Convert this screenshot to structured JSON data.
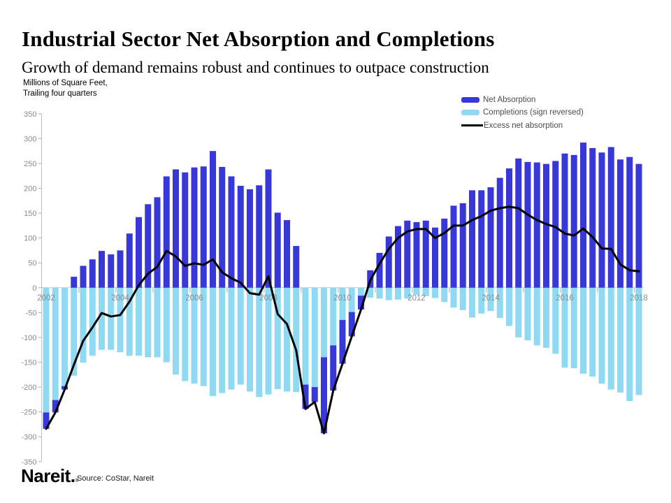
{
  "header": {
    "title": "Industrial Sector Net Absorption and Completions",
    "subtitle": "Growth of demand remains robust and continues to outpace construction"
  },
  "axis_note": {
    "line1": "Millions of Square Feet,",
    "line2": "Trailing four quarters"
  },
  "legend": {
    "items": [
      {
        "label": "Net Absorption",
        "swatch": "bar",
        "color": "#3838D8"
      },
      {
        "label": "Completions (sign reversed)",
        "swatch": "bar",
        "color": "#8FD9F2"
      },
      {
        "label": "Excess net absorption",
        "swatch": "line",
        "color": "#000000"
      }
    ]
  },
  "footer": {
    "logo_text": "Nareit.",
    "registered_mark": "®",
    "source": "Source: CoStar, Nareit"
  },
  "colors": {
    "net_absorption": "#3838D8",
    "completions": "#8FD9F2",
    "excess_line": "#000000",
    "axis_text": "#8C8C8C",
    "axis_line": "#BFBFBF",
    "tick_line": "#ADADAD",
    "zero_line": "#C9C9C9"
  },
  "chart_data": {
    "type": "bar",
    "title": "Industrial Sector Net Absorption and Completions",
    "subtitle": "Growth of demand remains robust and continues to outpace construction",
    "ylabel": "Millions of Square Feet, Trailing four quarters",
    "ylim": [
      -350,
      350
    ],
    "ytick_step": 50,
    "grid": "zero-line-only",
    "legend_position": "top-right",
    "bar_mode": "overlay; negative net absorption stacked below completions",
    "x_tick_labels": [
      "2002",
      "2004",
      "2006",
      "2008",
      "2010",
      "2012",
      "2014",
      "2016",
      "2018"
    ],
    "quarters": [
      "2002Q1",
      "2002Q2",
      "2002Q3",
      "2002Q4",
      "2003Q1",
      "2003Q2",
      "2003Q3",
      "2003Q4",
      "2004Q1",
      "2004Q2",
      "2004Q3",
      "2004Q4",
      "2005Q1",
      "2005Q2",
      "2005Q3",
      "2005Q4",
      "2006Q1",
      "2006Q2",
      "2006Q3",
      "2006Q4",
      "2007Q1",
      "2007Q2",
      "2007Q3",
      "2007Q4",
      "2008Q1",
      "2008Q2",
      "2008Q3",
      "2008Q4",
      "2009Q1",
      "2009Q2",
      "2009Q3",
      "2009Q4",
      "2010Q1",
      "2010Q2",
      "2010Q3",
      "2010Q4",
      "2011Q1",
      "2011Q2",
      "2011Q3",
      "2011Q4",
      "2012Q1",
      "2012Q2",
      "2012Q3",
      "2012Q4",
      "2013Q1",
      "2013Q2",
      "2013Q3",
      "2013Q4",
      "2014Q1",
      "2014Q2",
      "2014Q3",
      "2014Q4",
      "2015Q1",
      "2015Q2",
      "2015Q3",
      "2015Q4",
      "2016Q1",
      "2016Q2",
      "2016Q3",
      "2016Q4",
      "2017Q1",
      "2017Q2",
      "2017Q3",
      "2017Q4",
      "2018Q1"
    ],
    "series": [
      {
        "name": "Net Absorption",
        "type": "bar",
        "color": "#3838D8",
        "values": [
          -33,
          -25,
          -7,
          22,
          44,
          57,
          74,
          67,
          75,
          109,
          142,
          168,
          182,
          224,
          238,
          232,
          242,
          244,
          275,
          243,
          224,
          205,
          198,
          206,
          238,
          151,
          136,
          84,
          -49,
          -30,
          -153,
          -91,
          -88,
          -49,
          -28,
          35,
          70,
          103,
          124,
          135,
          132,
          135,
          121,
          139,
          165,
          170,
          196,
          196,
          202,
          221,
          240,
          260,
          253,
          252,
          249,
          255,
          270,
          267,
          292,
          281,
          272,
          283,
          258,
          263,
          249
        ]
      },
      {
        "name": "Completions (sign reversed)",
        "type": "bar",
        "color": "#8FD9F2",
        "values": [
          -251,
          -226,
          -198,
          -177,
          -151,
          -137,
          -125,
          -125,
          -130,
          -137,
          -137,
          -140,
          -140,
          -150,
          -175,
          -188,
          -193,
          -198,
          -218,
          -212,
          -205,
          -195,
          -209,
          -220,
          -215,
          -204,
          -209,
          -210,
          -195,
          -200,
          -140,
          -116,
          -65,
          -49,
          -16,
          -20,
          -22,
          -25,
          -24,
          -22,
          -14,
          -17,
          -21,
          -29,
          -40,
          -45,
          -60,
          -52,
          -47,
          -61,
          -77,
          -100,
          -106,
          -116,
          -121,
          -133,
          -161,
          -162,
          -173,
          -179,
          -193,
          -205,
          -211,
          -228,
          -216
        ]
      },
      {
        "name": "Excess net absorption",
        "type": "line",
        "color": "#000000",
        "values": [
          -284,
          -251,
          -205,
          -155,
          -107,
          -80,
          -51,
          -58,
          -55,
          -28,
          5,
          28,
          42,
          74,
          63,
          44,
          49,
          46,
          57,
          31,
          19,
          10,
          -11,
          -14,
          23,
          -53,
          -73,
          -126,
          -244,
          -230,
          -293,
          -207,
          -153,
          -98,
          -44,
          15,
          48,
          78,
          100,
          113,
          118,
          118,
          100,
          110,
          125,
          125,
          136,
          144,
          155,
          160,
          163,
          160,
          147,
          136,
          128,
          122,
          109,
          105,
          119,
          102,
          79,
          78,
          47,
          35,
          33
        ]
      }
    ]
  }
}
